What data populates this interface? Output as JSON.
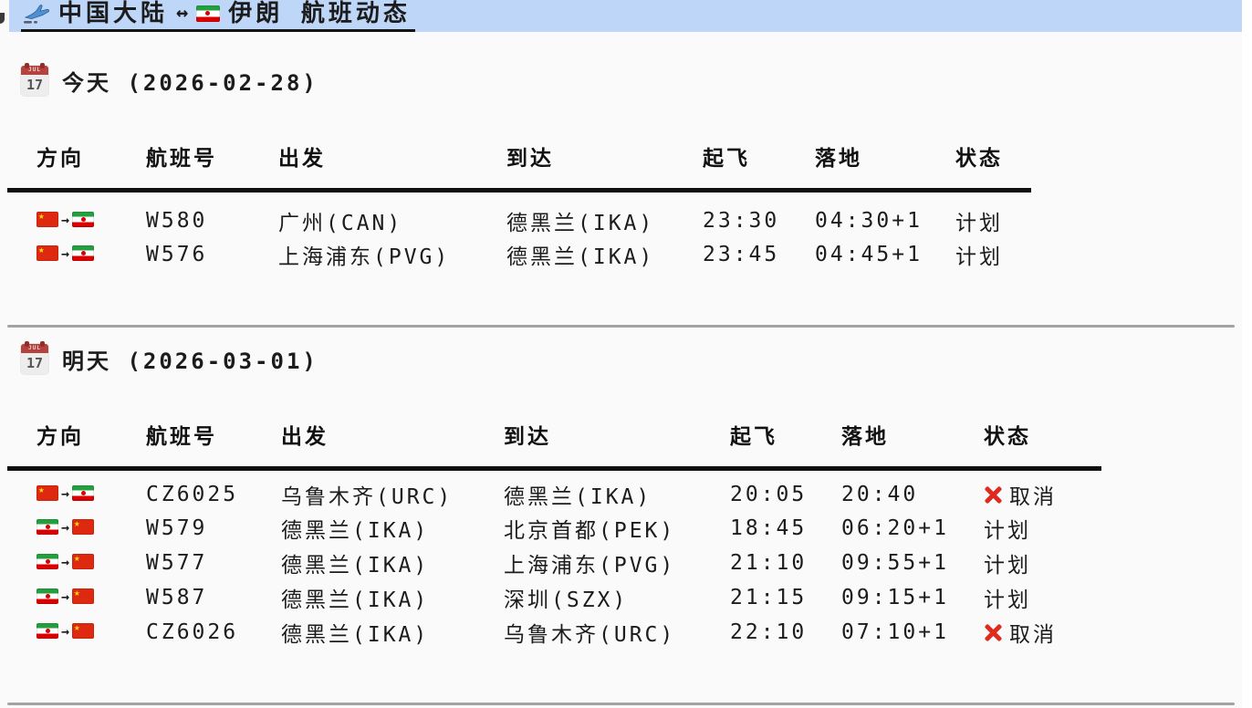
{
  "title": {
    "plane_icon": "airplane-departure-icon",
    "text_before_arrow": "中国大陆",
    "arrow": "↔",
    "iran_flag": "IR",
    "text_after_arrow": "伊朗 航班动态",
    "highlight_color": "#bed7f8"
  },
  "sections": [
    {
      "heading": "今天 (2026-02-28)",
      "calendar_icon": {
        "month": "JUL",
        "day": "17"
      },
      "columns": [
        "方向",
        "航班号",
        "出发",
        "到达",
        "起飞",
        "落地",
        "状态"
      ],
      "rows": [
        {
          "direction": "CN→IR",
          "flight_no": "W580",
          "departure": "广州(CAN)",
          "arrival": "德黑兰(IKA)",
          "takeoff": "23:30",
          "landing": "04:30+1",
          "status": "计划",
          "cancelled": false
        },
        {
          "direction": "CN→IR",
          "flight_no": "W576",
          "departure": "上海浦东(PVG)",
          "arrival": "德黑兰(IKA)",
          "takeoff": "23:45",
          "landing": "04:45+1",
          "status": "计划",
          "cancelled": false
        }
      ]
    },
    {
      "heading": "明天 (2026-03-01)",
      "calendar_icon": {
        "month": "JUL",
        "day": "17"
      },
      "columns": [
        "方向",
        "航班号",
        "出发",
        "到达",
        "起飞",
        "落地",
        "状态"
      ],
      "rows": [
        {
          "direction": "CN→IR",
          "flight_no": "CZ6025",
          "departure": "乌鲁木齐(URC)",
          "arrival": "德黑兰(IKA)",
          "takeoff": "20:05",
          "landing": "20:40",
          "status": "取消",
          "cancelled": true
        },
        {
          "direction": "IR→CN",
          "flight_no": "W579",
          "departure": "德黑兰(IKA)",
          "arrival": "北京首都(PEK)",
          "takeoff": "18:45",
          "landing": "06:20+1",
          "status": "计划",
          "cancelled": false
        },
        {
          "direction": "IR→CN",
          "flight_no": "W577",
          "departure": "德黑兰(IKA)",
          "arrival": "上海浦东(PVG)",
          "takeoff": "21:10",
          "landing": "09:55+1",
          "status": "计划",
          "cancelled": false
        },
        {
          "direction": "IR→CN",
          "flight_no": "W587",
          "departure": "德黑兰(IKA)",
          "arrival": "深圳(SZX)",
          "takeoff": "21:15",
          "landing": "09:15+1",
          "status": "计划",
          "cancelled": false
        },
        {
          "direction": "IR→CN",
          "flight_no": "CZ6026",
          "departure": "德黑兰(IKA)",
          "arrival": "乌鲁木齐(URC)",
          "takeoff": "22:10",
          "landing": "07:10+1",
          "status": "取消",
          "cancelled": true
        }
      ]
    }
  ],
  "colors": {
    "page_background": "#fafafa",
    "title_highlight": "#bed7f8",
    "cancel_red": "#e0291f",
    "china_flag_red": "#de2910",
    "china_flag_star": "#ffde00",
    "iran_flag_green": "#239f40",
    "iran_flag_red": "#da0000",
    "calendar_red": "#b3433c",
    "divider_gray": "#a3a3a3",
    "table_rule_black": "#0f0f0f"
  }
}
